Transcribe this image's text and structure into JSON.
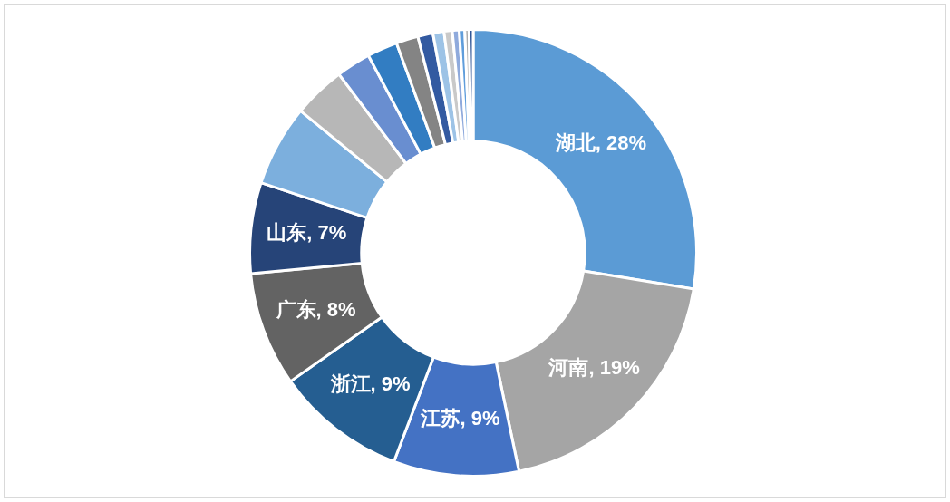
{
  "chart_data": {
    "type": "donut",
    "categories": [
      "湖北",
      "河南",
      "江苏",
      "浙江",
      "广东",
      "山东",
      null,
      null,
      null,
      null,
      null,
      null,
      null,
      null,
      null,
      null,
      null,
      null
    ],
    "values": [
      27.7,
      19.2,
      9.1,
      9.5,
      8.3,
      6.6,
      5.9,
      3.8,
      2.5,
      2.2,
      1.6,
      1.1,
      0.8,
      0.6,
      0.5,
      0.4,
      0.3,
      0.3
    ],
    "colors": [
      "#5b9bd5",
      "#a5a5a5",
      "#4472c4",
      "#255e91",
      "#636363",
      "#264478",
      "#7cafdd",
      "#b7b7b7",
      "#698ed0",
      "#327dc2",
      "#848484",
      "#335aa1",
      "#9dc3e6",
      "#c9c9c9",
      "#8faadc",
      "#5f9ddb",
      "#adadad",
      "#2e5597"
    ],
    "value_labels": [
      "28%",
      "19%",
      "9%",
      "9%",
      "8%",
      "7%",
      null,
      null,
      null,
      null,
      null,
      null,
      null,
      null,
      null,
      null,
      null,
      null
    ],
    "legend": false
  }
}
